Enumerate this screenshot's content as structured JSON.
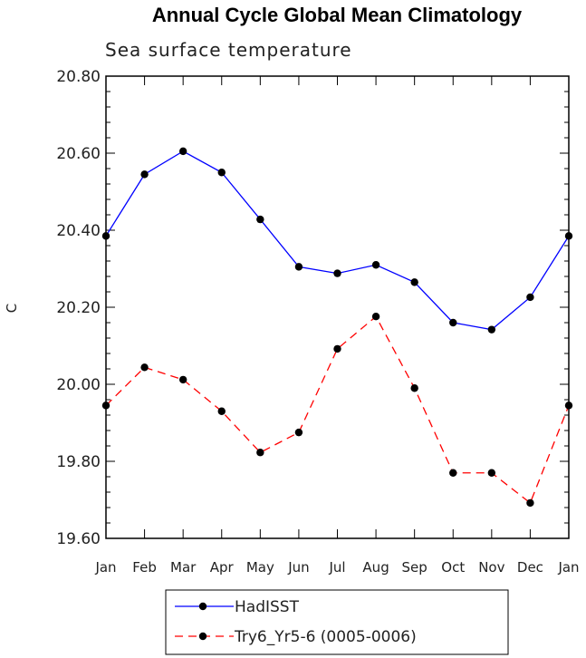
{
  "chart_data": {
    "type": "line",
    "title": "Annual Cycle Global Mean Climatology",
    "subtitle": "Sea surface temperature",
    "xlabel": "",
    "ylabel": "C",
    "categories": [
      "Jan",
      "Feb",
      "Mar",
      "Apr",
      "May",
      "Jun",
      "Jul",
      "Aug",
      "Sep",
      "Oct",
      "Nov",
      "Dec",
      "Jan"
    ],
    "ylim": [
      19.6,
      20.8
    ],
    "yticks": [
      19.6,
      19.8,
      20.0,
      20.2,
      20.4,
      20.6,
      20.8
    ],
    "ytick_labels": [
      "19.60",
      "19.80",
      "20.00",
      "20.20",
      "20.40",
      "20.60",
      "20.80"
    ],
    "grid": false,
    "legend_position": "bottom",
    "series": [
      {
        "name": "HadISST",
        "color": "#0000ff",
        "style": "solid",
        "values": [
          20.385,
          20.545,
          20.605,
          20.55,
          20.428,
          20.305,
          20.288,
          20.31,
          20.265,
          20.16,
          20.142,
          20.226,
          20.385
        ]
      },
      {
        "name": "Try6_Yr5-6 (0005-0006)",
        "color": "#ff0000",
        "style": "dashed",
        "values": [
          19.945,
          20.044,
          20.012,
          19.93,
          19.823,
          19.875,
          20.092,
          20.176,
          19.99,
          19.77,
          19.77,
          19.692,
          19.945
        ]
      }
    ]
  }
}
